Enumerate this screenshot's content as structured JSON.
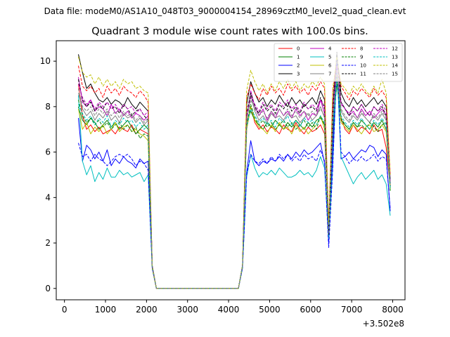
{
  "suptitle": "Data file: modeM0/AS1A10_048T03_9000004154_28969cztM0_level2_quad_clean.evt",
  "chart_data": {
    "type": "line",
    "title": "Quadrant 3 module wise count rates with 100.0s bins.",
    "xlabel": "",
    "ylabel": "",
    "offset_label": "+3.502e8",
    "xlim": [
      -200,
      8300
    ],
    "ylim": [
      -0.5,
      10.9
    ],
    "xticks": [
      0,
      1000,
      2000,
      3000,
      4000,
      5000,
      6000,
      7000,
      8000
    ],
    "yticks": [
      0,
      2,
      4,
      6,
      8,
      10
    ],
    "legend_location": "top-right",
    "x": [
      340,
      440,
      540,
      640,
      740,
      840,
      940,
      1040,
      1140,
      1240,
      1340,
      1440,
      1540,
      1640,
      1740,
      1840,
      1940,
      2040,
      2140,
      2240,
      4240,
      4340,
      4440,
      4540,
      4640,
      4740,
      4840,
      4940,
      5040,
      5140,
      5240,
      5340,
      5440,
      5540,
      5640,
      5740,
      5840,
      5940,
      6040,
      6140,
      6240,
      6340,
      6440,
      6540,
      6640,
      6740,
      6840,
      6940,
      7040,
      7140,
      7240,
      7340,
      7440,
      7540,
      7640,
      7740,
      7840,
      7940
    ],
    "series": [
      {
        "name": "0",
        "color": "#ff0000",
        "dash": "solid",
        "values": [
          9.0,
          7.6,
          7.0,
          7.2,
          6.9,
          7.1,
          6.8,
          6.9,
          7.0,
          6.8,
          7.1,
          7.0,
          6.9,
          7.2,
          6.8,
          7.0,
          6.9,
          6.8,
          1.0,
          0.0,
          0.0,
          1.0,
          7.0,
          8.0,
          7.3,
          7.0,
          7.2,
          6.9,
          7.1,
          7.0,
          6.8,
          7.2,
          7.0,
          6.9,
          7.3,
          7.0,
          6.8,
          7.1,
          6.9,
          7.0,
          7.2,
          6.8,
          2.5,
          6.8,
          9.5,
          7.5,
          7.0,
          6.8,
          7.2,
          6.9,
          7.1,
          7.0,
          6.8,
          7.2,
          6.9,
          7.0,
          6.2,
          4.5
        ]
      },
      {
        "name": "1",
        "color": "#008000",
        "dash": "solid",
        "values": [
          8.0,
          7.4,
          7.2,
          7.5,
          7.3,
          7.0,
          7.2,
          7.4,
          7.1,
          7.3,
          7.0,
          7.2,
          7.4,
          7.1,
          6.8,
          7.0,
          7.2,
          7.0,
          1.0,
          0.0,
          0.0,
          1.0,
          7.3,
          7.8,
          7.4,
          7.2,
          7.0,
          7.3,
          7.1,
          7.4,
          7.2,
          7.0,
          7.3,
          7.1,
          7.4,
          7.2,
          7.0,
          7.3,
          7.1,
          7.4,
          7.5,
          7.2,
          2.3,
          7.0,
          9.0,
          7.4,
          7.2,
          7.0,
          7.3,
          7.1,
          7.4,
          7.2,
          7.0,
          7.3,
          7.1,
          7.4,
          7.0,
          4.3
        ]
      },
      {
        "name": "2",
        "color": "#0000ff",
        "dash": "solid",
        "values": [
          7.5,
          5.6,
          6.3,
          6.1,
          5.7,
          6.0,
          5.6,
          6.1,
          5.4,
          5.7,
          5.5,
          5.8,
          5.6,
          5.5,
          5.3,
          5.7,
          5.5,
          5.6,
          0.9,
          0.0,
          0.0,
          0.9,
          5.1,
          6.5,
          5.6,
          5.4,
          5.6,
          5.5,
          5.7,
          5.6,
          5.8,
          5.6,
          5.9,
          5.7,
          6.0,
          5.8,
          6.1,
          5.9,
          6.0,
          6.2,
          6.4,
          5.5,
          2.0,
          6.2,
          10.0,
          5.7,
          5.8,
          6.0,
          5.7,
          5.9,
          6.1,
          6.0,
          6.3,
          6.2,
          5.8,
          6.1,
          5.9,
          3.4
        ]
      },
      {
        "name": "3",
        "color": "#000000",
        "dash": "solid",
        "values": [
          10.3,
          9.5,
          8.8,
          9.0,
          8.6,
          8.3,
          8.2,
          8.4,
          8.1,
          8.3,
          8.2,
          8.0,
          8.4,
          8.1,
          7.9,
          8.2,
          8.0,
          7.8,
          1.0,
          0.0,
          0.0,
          1.0,
          8.1,
          9.1,
          8.6,
          8.2,
          8.4,
          8.0,
          8.3,
          8.1,
          8.5,
          8.2,
          8.0,
          8.4,
          8.1,
          8.3,
          8.0,
          8.2,
          8.4,
          8.1,
          8.7,
          8.3,
          2.6,
          8.0,
          10.3,
          8.6,
          8.2,
          8.0,
          8.4,
          8.1,
          8.3,
          8.0,
          8.2,
          8.4,
          8.1,
          8.3,
          8.0,
          4.8
        ]
      },
      {
        "name": "4",
        "color": "#bf00bf",
        "dash": "solid",
        "values": [
          9.3,
          8.2,
          8.0,
          8.3,
          7.8,
          8.0,
          7.9,
          7.6,
          8.1,
          7.7,
          7.9,
          7.6,
          7.8,
          7.5,
          7.7,
          7.6,
          7.4,
          7.6,
          1.0,
          0.0,
          0.0,
          1.0,
          7.4,
          8.7,
          8.0,
          7.6,
          7.9,
          7.4,
          7.8,
          7.5,
          7.9,
          7.6,
          7.8,
          7.5,
          7.9,
          7.6,
          7.8,
          7.4,
          7.7,
          7.6,
          8.3,
          7.7,
          2.4,
          7.5,
          9.5,
          8.2,
          7.9,
          7.6,
          7.8,
          7.5,
          7.9,
          7.6,
          7.8,
          7.5,
          7.7,
          7.9,
          7.6,
          4.6
        ]
      },
      {
        "name": "5",
        "color": "#00bfbf",
        "dash": "solid",
        "values": [
          8.5,
          5.6,
          5.0,
          5.4,
          4.7,
          5.1,
          4.8,
          5.3,
          4.9,
          4.9,
          5.2,
          5.0,
          5.1,
          4.9,
          5.0,
          5.1,
          4.7,
          5.0,
          0.9,
          0.0,
          0.0,
          0.9,
          4.9,
          5.9,
          5.3,
          4.9,
          5.1,
          5.0,
          5.2,
          5.0,
          5.3,
          5.1,
          4.9,
          4.9,
          5.0,
          5.2,
          5.0,
          5.1,
          4.9,
          5.2,
          5.8,
          5.3,
          2.2,
          5.4,
          9.8,
          5.8,
          5.4,
          5.0,
          4.6,
          4.9,
          5.1,
          4.8,
          5.0,
          5.2,
          4.8,
          5.0,
          4.6,
          3.2
        ]
      },
      {
        "name": "6",
        "color": "#bfbf00",
        "dash": "solid",
        "values": [
          7.9,
          7.0,
          7.3,
          6.8,
          7.1,
          6.9,
          7.2,
          6.8,
          7.0,
          7.3,
          6.9,
          7.1,
          7.2,
          6.9,
          7.0,
          6.8,
          6.7,
          6.5,
          0.9,
          0.0,
          0.0,
          1.0,
          7.0,
          8.0,
          7.4,
          7.1,
          7.0,
          6.8,
          7.2,
          6.9,
          7.3,
          7.0,
          7.1,
          6.8,
          7.2,
          6.9,
          7.1,
          6.8,
          7.0,
          7.2,
          7.6,
          7.0,
          2.3,
          7.3,
          9.4,
          7.3,
          7.1,
          6.9,
          7.2,
          7.0,
          6.8,
          7.1,
          7.2,
          6.9,
          7.0,
          7.2,
          6.9,
          4.4
        ]
      },
      {
        "name": "7",
        "color": "#808080",
        "dash": "solid",
        "values": [
          8.6,
          7.9,
          7.6,
          7.8,
          7.4,
          7.7,
          7.5,
          7.8,
          7.4,
          7.6,
          7.3,
          7.7,
          7.5,
          7.6,
          7.3,
          7.5,
          7.2,
          7.4,
          1.0,
          0.0,
          0.0,
          1.0,
          7.5,
          8.5,
          7.8,
          7.4,
          7.6,
          7.3,
          7.7,
          7.5,
          7.6,
          7.4,
          7.7,
          7.5,
          7.6,
          7.3,
          7.5,
          7.7,
          7.4,
          7.6,
          8.0,
          7.5,
          2.5,
          7.4,
          9.7,
          7.8,
          7.5,
          7.3,
          7.6,
          7.4,
          7.7,
          7.5,
          7.3,
          7.6,
          7.4,
          7.7,
          7.4,
          4.6
        ]
      },
      {
        "name": "8",
        "color": "#ff0000",
        "dash": "dashed",
        "values": [
          9.8,
          8.9,
          8.7,
          8.9,
          8.6,
          8.8,
          8.4,
          8.9,
          8.6,
          8.8,
          8.5,
          8.9,
          8.7,
          8.6,
          8.4,
          8.7,
          8.5,
          8.2,
          1.0,
          0.0,
          0.0,
          1.0,
          8.4,
          9.0,
          8.6,
          8.3,
          8.8,
          8.5,
          8.9,
          8.6,
          8.8,
          8.5,
          9.0,
          8.7,
          8.9,
          8.6,
          8.8,
          8.5,
          8.9,
          8.7,
          9.1,
          8.8,
          2.7,
          8.6,
          10.1,
          8.9,
          8.6,
          8.3,
          8.7,
          8.5,
          8.8,
          8.6,
          8.4,
          8.8,
          8.5,
          8.7,
          8.4,
          5.0
        ]
      },
      {
        "name": "9",
        "color": "#008000",
        "dash": "dashed",
        "values": [
          8.3,
          7.6,
          7.3,
          7.5,
          7.2,
          7.4,
          7.1,
          7.3,
          7.0,
          7.2,
          7.3,
          7.0,
          7.2,
          6.9,
          7.1,
          6.6,
          6.8,
          6.7,
          0.9,
          0.0,
          0.0,
          1.0,
          7.2,
          8.1,
          7.5,
          7.2,
          7.4,
          7.1,
          7.3,
          7.0,
          7.2,
          7.4,
          7.1,
          7.3,
          7.0,
          7.2,
          7.4,
          7.1,
          7.3,
          7.0,
          7.6,
          7.2,
          2.3,
          7.1,
          9.3,
          7.5,
          7.2,
          7.0,
          7.3,
          7.1,
          7.2,
          7.0,
          7.3,
          7.1,
          6.9,
          7.2,
          7.3,
          4.3
        ]
      },
      {
        "name": "10",
        "color": "#0000ff",
        "dash": "dashed",
        "values": [
          6.4,
          5.8,
          5.9,
          5.6,
          5.9,
          5.7,
          5.6,
          5.4,
          5.6,
          5.8,
          5.9,
          5.8,
          5.9,
          5.7,
          5.4,
          5.6,
          5.5,
          5.2,
          0.9,
          0.0,
          0.0,
          0.9,
          5.0,
          5.9,
          5.6,
          5.5,
          5.7,
          5.5,
          5.8,
          5.6,
          5.9,
          5.7,
          5.9,
          5.6,
          5.8,
          5.6,
          5.9,
          5.7,
          5.8,
          5.6,
          6.1,
          5.6,
          1.8,
          5.3,
          10.2,
          6.0,
          5.8,
          5.5,
          5.7,
          5.6,
          5.8,
          5.6,
          5.7,
          5.9,
          5.6,
          5.8,
          5.7,
          3.5
        ]
      },
      {
        "name": "11",
        "color": "#000000",
        "dash": "dashed",
        "values": [
          9.2,
          8.3,
          8.0,
          8.2,
          7.8,
          8.1,
          7.9,
          8.2,
          7.9,
          8.0,
          7.7,
          8.1,
          7.9,
          7.6,
          7.8,
          7.9,
          7.6,
          7.4,
          1.0,
          0.0,
          0.0,
          1.0,
          7.7,
          8.6,
          8.0,
          7.7,
          8.1,
          7.8,
          8.0,
          7.7,
          8.1,
          7.9,
          8.2,
          7.8,
          8.0,
          7.7,
          8.1,
          7.9,
          8.0,
          7.8,
          8.4,
          7.9,
          2.4,
          7.6,
          10.4,
          8.2,
          7.9,
          7.6,
          8.0,
          7.8,
          8.1,
          7.8,
          7.6,
          8.0,
          7.8,
          8.0,
          7.6,
          4.5
        ]
      },
      {
        "name": "12",
        "color": "#bf00bf",
        "dash": "dashed",
        "values": [
          9.0,
          8.4,
          8.1,
          8.3,
          7.9,
          8.2,
          8.0,
          8.2,
          7.9,
          8.1,
          7.8,
          8.1,
          7.9,
          8.0,
          7.7,
          7.9,
          7.6,
          7.8,
          1.0,
          0.0,
          0.0,
          1.0,
          7.6,
          8.4,
          8.1,
          7.8,
          8.2,
          7.9,
          8.1,
          7.8,
          8.2,
          8.0,
          8.3,
          7.9,
          8.1,
          7.8,
          8.2,
          7.9,
          8.1,
          7.9,
          8.3,
          8.0,
          2.4,
          7.9,
          9.8,
          8.1,
          7.9,
          7.7,
          8.0,
          7.8,
          8.1,
          7.8,
          7.6,
          8.0,
          7.8,
          8.1,
          7.8,
          4.7
        ]
      },
      {
        "name": "13",
        "color": "#00bfbf",
        "dash": "dashed",
        "values": [
          8.1,
          7.7,
          7.4,
          7.6,
          7.2,
          7.5,
          7.3,
          7.6,
          7.1,
          7.4,
          7.2,
          7.5,
          7.3,
          7.4,
          7.1,
          7.3,
          7.0,
          7.2,
          1.0,
          0.0,
          0.0,
          1.0,
          7.1,
          7.9,
          7.6,
          7.3,
          7.5,
          7.2,
          7.4,
          7.1,
          7.5,
          7.3,
          7.6,
          7.2,
          7.4,
          7.1,
          7.5,
          7.3,
          7.4,
          7.2,
          7.6,
          7.3,
          2.3,
          7.2,
          9.1,
          7.6,
          7.3,
          7.1,
          7.4,
          7.2,
          7.5,
          7.2,
          7.0,
          7.4,
          7.2,
          7.5,
          7.2,
          4.4
        ]
      },
      {
        "name": "14",
        "color": "#bfbf00",
        "dash": "dashed",
        "values": [
          10.2,
          9.5,
          9.3,
          9.4,
          9.0,
          9.3,
          8.9,
          9.2,
          8.9,
          9.1,
          8.8,
          9.2,
          9.0,
          9.1,
          8.8,
          8.9,
          8.7,
          8.6,
          1.0,
          0.0,
          0.0,
          1.0,
          8.7,
          9.6,
          9.1,
          8.7,
          9.0,
          8.6,
          9.0,
          8.7,
          9.1,
          8.8,
          9.2,
          8.8,
          9.1,
          8.7,
          9.0,
          8.8,
          9.1,
          8.9,
          9.3,
          9.0,
          2.8,
          8.8,
          10.2,
          9.0,
          8.8,
          8.5,
          8.9,
          8.7,
          9.0,
          8.7,
          8.5,
          8.9,
          8.6,
          9.2,
          8.6,
          5.0
        ]
      },
      {
        "name": "15",
        "color": "#808080",
        "dash": "dashed",
        "values": [
          8.8,
          8.0,
          7.8,
          8.0,
          7.6,
          7.9,
          7.7,
          7.9,
          7.6,
          7.8,
          7.5,
          7.8,
          7.6,
          7.7,
          7.4,
          7.6,
          7.3,
          7.5,
          1.0,
          0.0,
          0.0,
          1.0,
          7.4,
          8.3,
          7.9,
          7.6,
          7.8,
          7.5,
          7.8,
          7.6,
          7.9,
          7.6,
          7.9,
          7.6,
          7.8,
          7.5,
          7.8,
          7.6,
          7.8,
          7.6,
          7.9,
          7.6,
          2.4,
          7.5,
          9.6,
          7.9,
          7.6,
          7.4,
          7.7,
          7.5,
          7.8,
          7.5,
          7.3,
          7.7,
          7.5,
          7.8,
          7.5,
          4.6
        ]
      }
    ]
  }
}
